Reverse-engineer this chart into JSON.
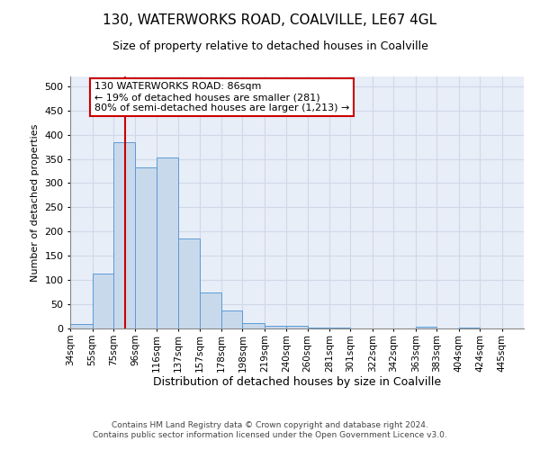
{
  "title_line1": "130, WATERWORKS ROAD, COALVILLE, LE67 4GL",
  "title_line2": "Size of property relative to detached houses in Coalville",
  "xlabel": "Distribution of detached houses by size in Coalville",
  "ylabel": "Number of detached properties",
  "footer_line1": "Contains HM Land Registry data © Crown copyright and database right 2024.",
  "footer_line2": "Contains public sector information licensed under the Open Government Licence v3.0.",
  "annotation_line1": "130 WATERWORKS ROAD: 86sqm",
  "annotation_line2": "← 19% of detached houses are smaller (281)",
  "annotation_line3": "80% of semi-detached houses are larger (1,213) →",
  "bar_left_edges": [
    34,
    55,
    75,
    96,
    116,
    137,
    157,
    178,
    198,
    219,
    240,
    260,
    281,
    301,
    322,
    342,
    363,
    383,
    404,
    424
  ],
  "bar_widths": [
    21,
    20,
    21,
    20,
    21,
    20,
    21,
    20,
    21,
    21,
    20,
    21,
    20,
    21,
    20,
    21,
    20,
    21,
    20,
    21
  ],
  "bar_heights": [
    10,
    114,
    385,
    333,
    353,
    185,
    75,
    38,
    11,
    6,
    5,
    1,
    1,
    0,
    0,
    0,
    3,
    0,
    1,
    0
  ],
  "bar_color": "#c9d9ec",
  "bar_edgecolor": "#5b9bd5",
  "vline_x": 86,
  "vline_color": "#cc0000",
  "ylim": [
    0,
    520
  ],
  "yticks": [
    0,
    50,
    100,
    150,
    200,
    250,
    300,
    350,
    400,
    450,
    500
  ],
  "xtick_labels": [
    "34sqm",
    "55sqm",
    "75sqm",
    "96sqm",
    "116sqm",
    "137sqm",
    "157sqm",
    "178sqm",
    "198sqm",
    "219sqm",
    "240sqm",
    "260sqm",
    "281sqm",
    "301sqm",
    "322sqm",
    "342sqm",
    "363sqm",
    "383sqm",
    "404sqm",
    "424sqm",
    "445sqm"
  ],
  "grid_color": "#d0d8e8",
  "background_color": "#e8eef8",
  "annotation_box_facecolor": "#ffffff",
  "annotation_box_edgecolor": "#cc0000",
  "title1_fontsize": 11,
  "title2_fontsize": 9,
  "ylabel_fontsize": 8,
  "xlabel_fontsize": 9,
  "footer_fontsize": 6.5
}
